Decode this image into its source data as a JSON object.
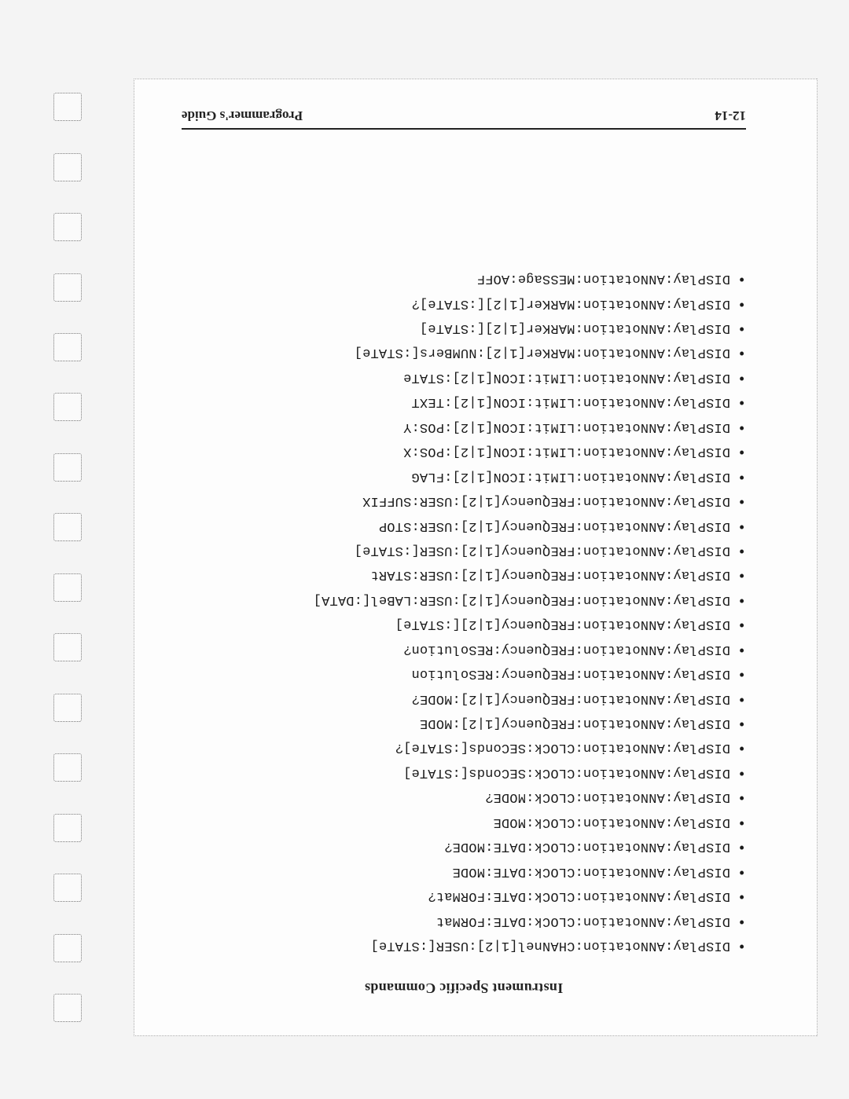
{
  "section_title": "Instrument Specific Commands",
  "commands": [
    "DISPlay:ANNotation:CHANnel[1|2]:USER[:STATe]",
    "DISPlay:ANNotation:CLOCk:DATE:FORMat",
    "DISPlay:ANNotation:CLOCk:DATE:FORMat?",
    "DISPlay:ANNotation:CLOCk:DATE:MODE",
    "DISPlay:ANNotation:CLOCk:DATE:MODE?",
    "DISPlay:ANNotation:CLOCk:MODE",
    "DISPlay:ANNotation:CLOCk:MODE?",
    "DISPlay:ANNotation:CLOCk:SEConds[:STATe]",
    "DISPlay:ANNotation:CLOCk:SEConds[:STATe]?",
    "DISPlay:ANNotation:FREQuency[1|2]:MODE",
    "DISPlay:ANNotation:FREQuency[1|2]:MODE?",
    "DISPlay:ANNotation:FREQuency:RESolution",
    "DISPlay:ANNotation:FREQuency:RESolution?",
    "DISPlay:ANNotation:FREQuency[1|2][:STATe]",
    "DISPlay:ANNotation:FREQuency[1|2]:USER:LABel[:DATA]",
    "DISPlay:ANNotation:FREQuency[1|2]:USER:STARt",
    "DISPlay:ANNotation:FREQuency[1|2]:USER[:STATe]",
    "DISPlay:ANNotation:FREQuency[1|2]:USER:STOP",
    "DISPlay:ANNotation:FREQuency[1|2]:USER:SUFFIX",
    "DISPlay:ANNotation:LIMit:ICON[1|2]:FLAG",
    "DISPlay:ANNotation:LIMit:ICON[1|2]:POS:X",
    "DISPlay:ANNotation:LIMit:ICON[1|2]:POS:Y",
    "DISPlay:ANNotation:LIMit:ICON[1|2]:TEXT",
    "DISPlay:ANNotation:LIMit:ICON[1|2]:STATe",
    "DISPlay:ANNotation:MARKer[1|2]:NUMBers[:STATe]",
    "DISPlay:ANNotation:MARKer[1|2][:STATe]",
    "DISPlay:ANNotation:MARKer[1|2][:STATe]?",
    "DISPlay:ANNotation:MESSage:AOFF"
  ],
  "footer": {
    "page_number": "12-14",
    "doc_title": "Programmer's Guide"
  },
  "hole_count": 16,
  "colors": {
    "page_bg": "#fdfdfd",
    "body_bg": "#f4f4f4",
    "text": "#1a1a1a",
    "rule": "#222222",
    "dotted": "#aaaaaa"
  },
  "typography": {
    "mono_family": "Courier New",
    "serif_family": "Georgia",
    "command_fontsize_pt": 13,
    "title_fontsize_pt": 14,
    "footer_fontsize_pt": 13
  }
}
